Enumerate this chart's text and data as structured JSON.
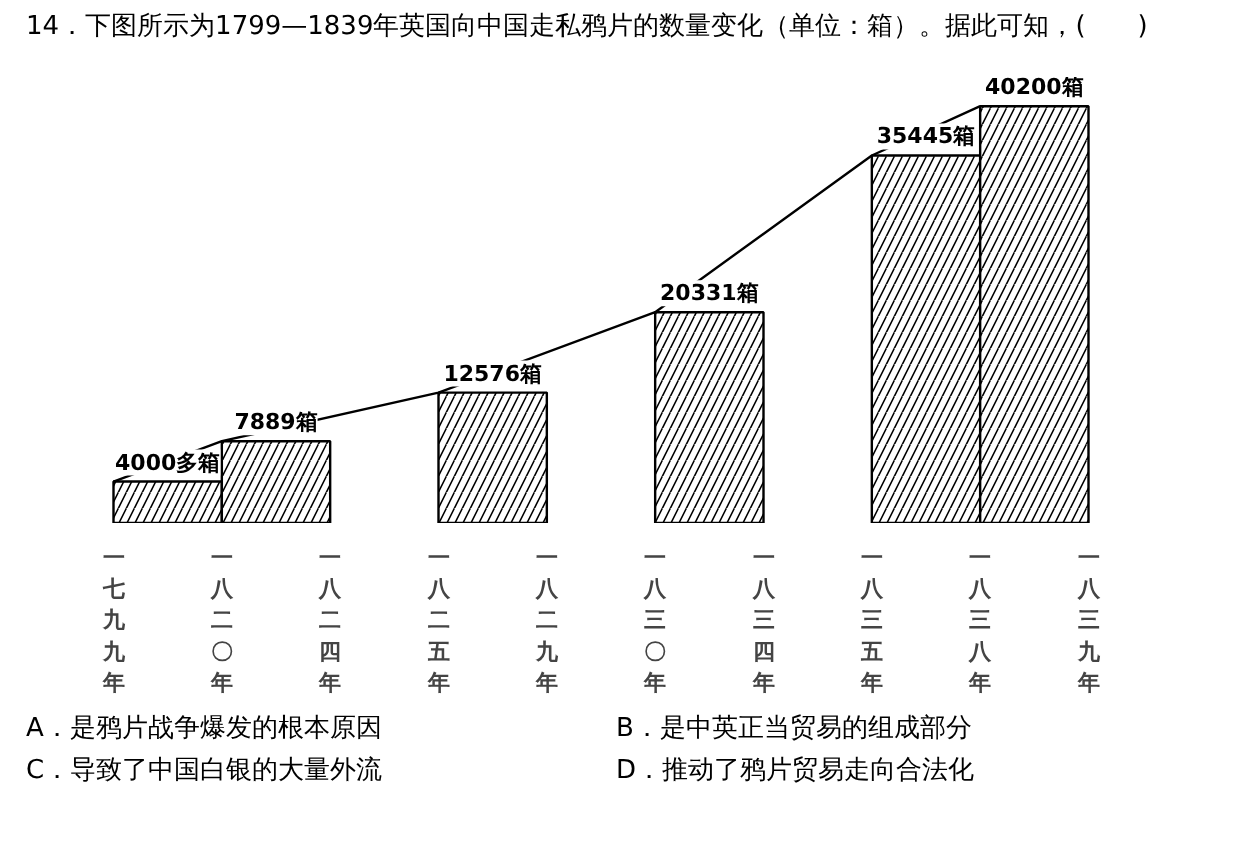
{
  "chart_data": {
    "type": "bar",
    "title": "14．下图所示为1799—1839年英国向中国走私鸦片的数量变化（单位：箱）。据此可知，(　　)",
    "annotations": [
      "A．是鸦片战争爆发的根本原因",
      "B．是中英正当贸易的组成部分",
      "C．导致了中国白银的大量外流",
      "D．推动了鸦片贸易走向合法化"
    ],
    "categories": [
      "一七九九年",
      "一八二〇年",
      "一八二四年",
      "一八二五年",
      "一八二九年",
      "一八三〇年",
      "一八三四年",
      "一八三五年",
      "一八三八年",
      "一八三九年"
    ],
    "series": [
      {
        "values": [
          4000,
          7889,
          null,
          12576,
          null,
          20331,
          null,
          35445,
          40200,
          null
        ],
        "value_labels": [
          "4000多箱",
          "7889箱",
          null,
          "12576箱",
          null,
          "20331箱",
          null,
          "35445箱",
          "40200箱",
          null
        ],
        "color": "#000000"
      }
    ],
    "tick_labels": "x",
    "grid": false
  }
}
